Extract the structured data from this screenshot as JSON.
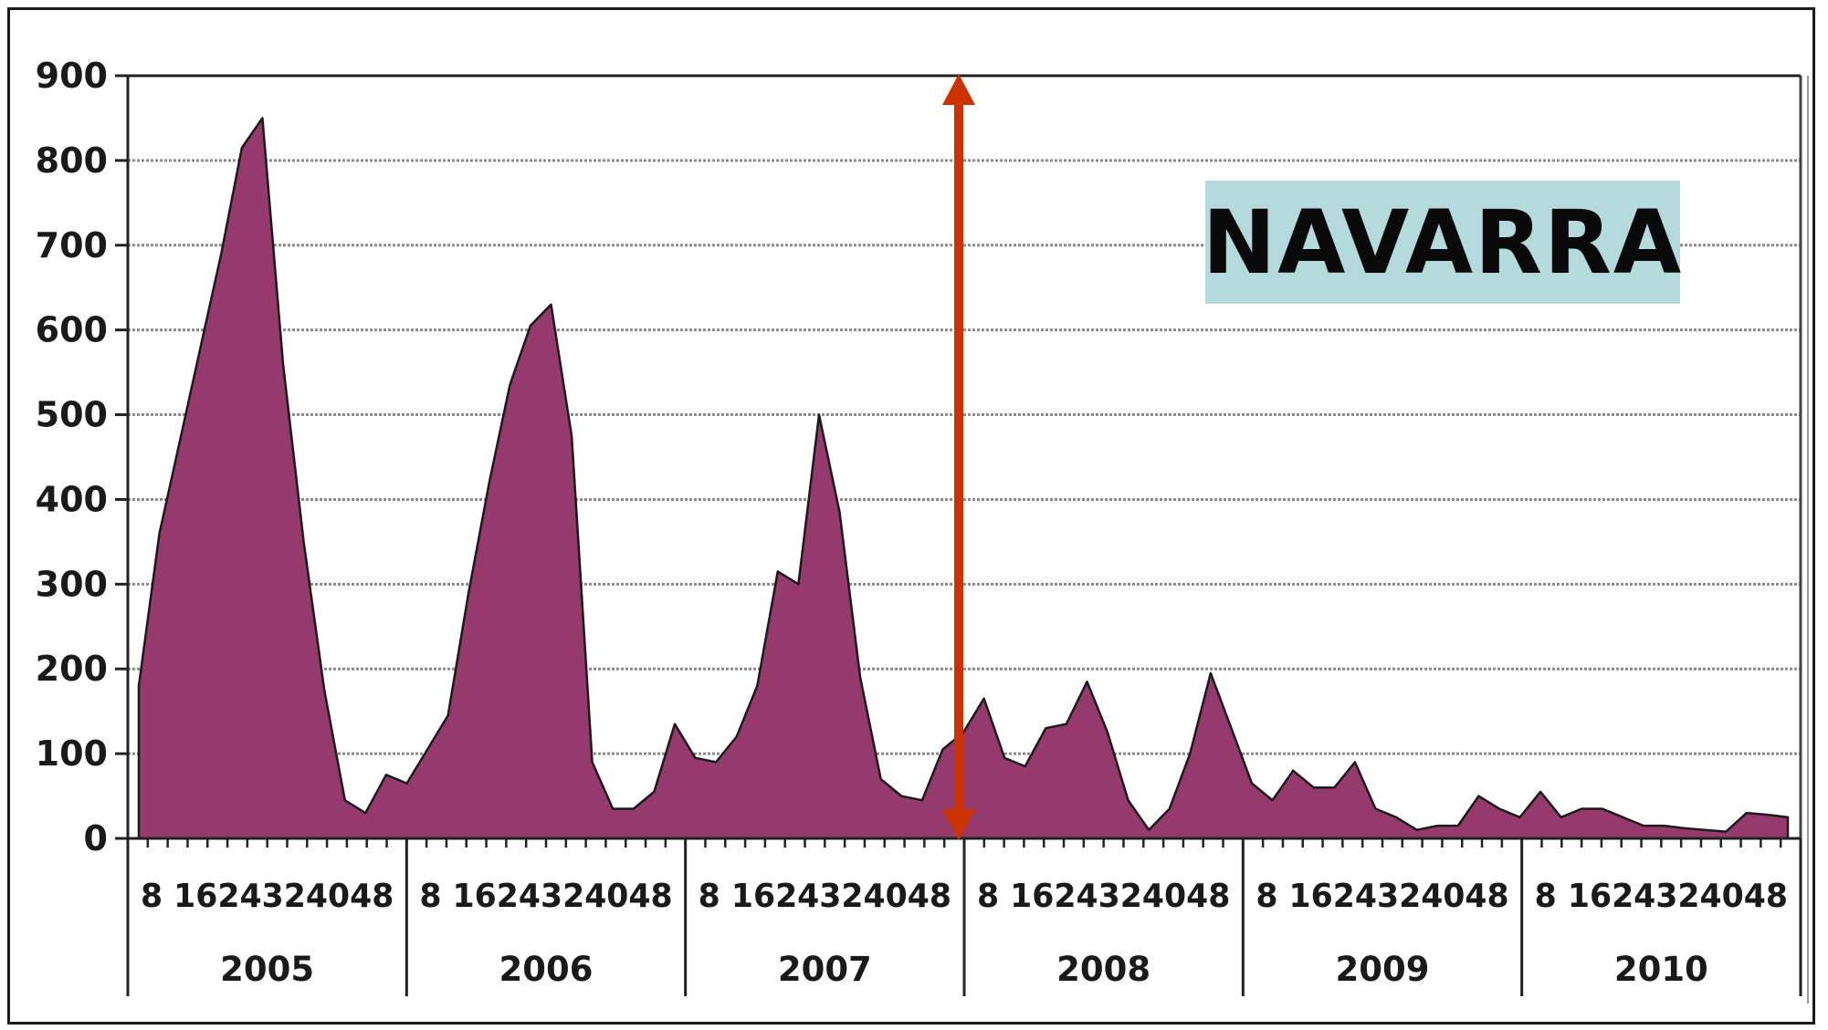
{
  "badge_text": "NAVARRA",
  "colors": {
    "area": "#963a6e",
    "arrow": "#cc3300",
    "grid": "#8a8a8a",
    "axis": "#222222",
    "badge_bg": "#b5dadc"
  },
  "chart_data": {
    "type": "area",
    "title": "",
    "xlabel": "",
    "ylabel": "",
    "ylim": [
      0,
      900
    ],
    "yticks": [
      0,
      100,
      200,
      300,
      400,
      500,
      600,
      700,
      800,
      900
    ],
    "grid": true,
    "years": [
      "2005",
      "2006",
      "2007",
      "2008",
      "2009",
      "2010"
    ],
    "week_labels": [
      "8",
      "16",
      "24",
      "32",
      "40",
      "48"
    ],
    "week_labels_text": "8 1624324048",
    "vertical_marker": {
      "between_years": [
        "2007",
        "2008"
      ],
      "from": 0,
      "to": 900
    },
    "series": [
      {
        "values": [
          180,
          360,
          470,
          580,
          690,
          815,
          850,
          560,
          350,
          175,
          45,
          30,
          75,
          65,
          105,
          145,
          290,
          420,
          535,
          605,
          630,
          475,
          90,
          35,
          35,
          55,
          135,
          95,
          90,
          120,
          180,
          315,
          300,
          500,
          385,
          190,
          70,
          50,
          45,
          105,
          125,
          165,
          95,
          85,
          130,
          135,
          185,
          125,
          45,
          10,
          35,
          100,
          195,
          130,
          65,
          45,
          80,
          60,
          60,
          90,
          35,
          25,
          10,
          15,
          15,
          50,
          35,
          25,
          55,
          25,
          35,
          35,
          25,
          15,
          15,
          12,
          10,
          8,
          30,
          28,
          25
        ]
      }
    ]
  }
}
